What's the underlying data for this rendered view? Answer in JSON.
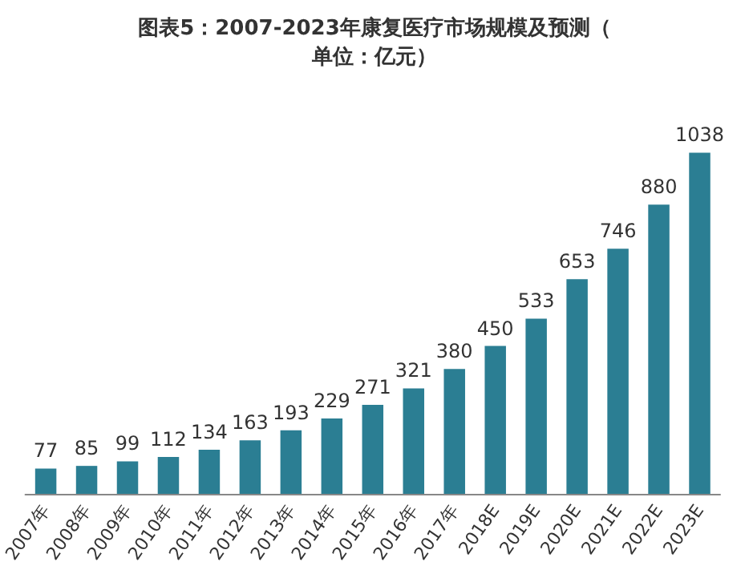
{
  "chart_data": {
    "type": "bar",
    "title": "图表5：2007-2023年康复医疗市场规模及预测（单位：亿元）",
    "categories": [
      "2007年",
      "2008年",
      "2009年",
      "2010年",
      "2011年",
      "2012年",
      "2013年",
      "2014年",
      "2015年",
      "2016年",
      "2017年",
      "2018E",
      "2019E",
      "2020E",
      "2021E",
      "2022E",
      "2023E"
    ],
    "values": [
      77,
      85,
      99,
      112,
      134,
      163,
      193,
      229,
      271,
      321,
      380,
      450,
      533,
      653,
      746,
      880,
      1038
    ],
    "color": "#2b7e93",
    "data_labels": true
  }
}
